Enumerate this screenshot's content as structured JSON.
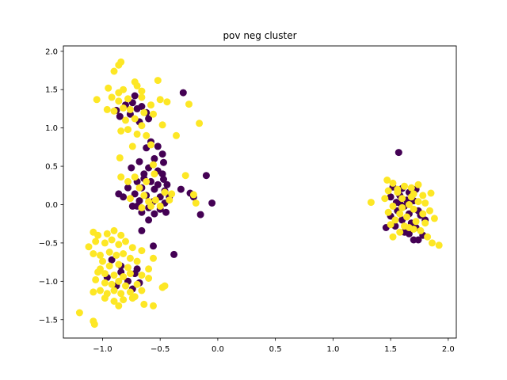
{
  "chart_data": {
    "type": "scatter",
    "title": "pov neg cluster",
    "xlabel": "",
    "ylabel": "",
    "xlim": [
      -1.34,
      2.07
    ],
    "ylim": [
      -1.74,
      2.07
    ],
    "xticks": [
      -1.0,
      -0.5,
      0.0,
      0.5,
      1.0,
      1.5,
      2.0
    ],
    "xtick_labels": [
      "−1.0",
      "−0.5",
      "0.0",
      "0.5",
      "1.0",
      "1.5",
      "2.0"
    ],
    "yticks": [
      -1.5,
      -1.0,
      -0.5,
      0.0,
      0.5,
      1.0,
      1.5,
      2.0
    ],
    "ytick_labels": [
      "−1.5",
      "−1.0",
      "−0.5",
      "0.0",
      "0.5",
      "1.0",
      "1.5",
      "2.0"
    ],
    "grid": false,
    "legend": "none",
    "colors": {
      "class_0": "#440154",
      "class_1": "#fde725",
      "axes": "#000000",
      "background": "#ffffff"
    },
    "series": [
      {
        "color": "#440154",
        "points": [
          [
            -0.3,
            1.46
          ],
          [
            -0.74,
            1.33
          ],
          [
            -0.7,
            1.25
          ],
          [
            -0.8,
            1.3
          ],
          [
            -0.62,
            1.2
          ],
          [
            -0.76,
            1.18
          ],
          [
            -0.85,
            1.15
          ],
          [
            -0.68,
            1.08
          ],
          [
            -0.88,
            1.23
          ],
          [
            -0.66,
            1.28
          ],
          [
            -0.72,
            1.42
          ],
          [
            -0.6,
            1.12
          ],
          [
            -0.58,
            0.82
          ],
          [
            -0.52,
            0.76
          ],
          [
            -0.62,
            0.74
          ],
          [
            -0.48,
            0.66
          ],
          [
            -0.55,
            0.6
          ],
          [
            -0.68,
            0.56
          ],
          [
            -0.47,
            0.55
          ],
          [
            -0.6,
            0.48
          ],
          [
            -0.52,
            0.44
          ],
          [
            -0.64,
            0.4
          ],
          [
            -0.75,
            0.48
          ],
          [
            -0.7,
            0.3
          ],
          [
            -0.58,
            0.3
          ],
          [
            -0.47,
            0.33
          ],
          [
            -0.78,
            0.22
          ],
          [
            -0.66,
            0.22
          ],
          [
            -0.55,
            0.2
          ],
          [
            -0.46,
            0.18
          ],
          [
            -0.72,
            0.14
          ],
          [
            -0.62,
            0.12
          ],
          [
            -0.5,
            0.1
          ],
          [
            -0.42,
            0.1
          ],
          [
            -0.82,
            0.1
          ],
          [
            -0.68,
            0.05
          ],
          [
            -0.56,
            0.04
          ],
          [
            -0.46,
            0.02
          ],
          [
            -0.74,
            -0.02
          ],
          [
            -0.6,
            -0.04
          ],
          [
            -0.5,
            -0.06
          ],
          [
            -0.66,
            -0.1
          ],
          [
            -0.55,
            -0.12
          ],
          [
            -0.45,
            -0.1
          ],
          [
            -0.6,
            -0.2
          ],
          [
            -0.7,
            -0.02
          ],
          [
            -0.52,
            0.26
          ],
          [
            -0.44,
            0.26
          ],
          [
            -0.86,
            0.14
          ],
          [
            -0.64,
            0.34
          ],
          [
            -0.24,
            0.15
          ],
          [
            -0.21,
            0.1
          ],
          [
            -0.1,
            0.38
          ],
          [
            -0.15,
            -0.13
          ],
          [
            -0.05,
            0.02
          ],
          [
            -0.66,
            -0.34
          ],
          [
            -0.56,
            -0.54
          ],
          [
            -0.38,
            -0.65
          ],
          [
            -0.32,
            0.2
          ],
          [
            -0.48,
            0.4
          ],
          [
            -0.92,
            -0.72
          ],
          [
            -0.84,
            -0.88
          ],
          [
            -0.72,
            -0.9
          ],
          [
            -0.78,
            -1.0
          ],
          [
            -0.88,
            -1.06
          ],
          [
            -0.68,
            -1.02
          ],
          [
            -0.84,
            -0.8
          ],
          [
            -0.74,
            -1.1
          ],
          [
            -0.96,
            -0.95
          ],
          [
            -0.7,
            -0.84
          ],
          [
            1.57,
            0.68
          ],
          [
            1.52,
            0.23
          ],
          [
            1.6,
            0.21
          ],
          [
            1.66,
            0.16
          ],
          [
            1.5,
            0.1
          ],
          [
            1.58,
            0.12
          ],
          [
            1.64,
            0.06
          ],
          [
            1.55,
            0.03
          ],
          [
            1.7,
            0.05
          ],
          [
            1.62,
            -0.02
          ],
          [
            1.56,
            -0.08
          ],
          [
            1.66,
            -0.12
          ],
          [
            1.74,
            -0.08
          ],
          [
            1.5,
            -0.15
          ],
          [
            1.6,
            -0.2
          ],
          [
            1.68,
            -0.24
          ],
          [
            1.72,
            -0.3
          ],
          [
            1.54,
            -0.28
          ],
          [
            1.62,
            -0.36
          ],
          [
            1.46,
            -0.3
          ],
          [
            1.7,
            -0.46
          ],
          [
            1.74,
            -0.46
          ],
          [
            1.78,
            -0.4
          ],
          [
            1.76,
            -0.14
          ],
          [
            1.8,
            -0.2
          ],
          [
            1.58,
            0.02
          ],
          [
            1.72,
            0.2
          ],
          [
            1.66,
            -0.38
          ]
        ]
      },
      {
        "color": "#fde725",
        "points": [
          [
            -0.84,
            1.86
          ],
          [
            -0.86,
            1.82
          ],
          [
            -0.9,
            1.74
          ],
          [
            -0.95,
            1.52
          ],
          [
            -0.86,
            1.46
          ],
          [
            -0.82,
            1.5
          ],
          [
            -0.72,
            1.6
          ],
          [
            -0.7,
            1.55
          ],
          [
            -0.66,
            1.48
          ],
          [
            -0.52,
            1.62
          ],
          [
            -1.05,
            1.37
          ],
          [
            -0.92,
            1.4
          ],
          [
            -0.86,
            1.35
          ],
          [
            -0.78,
            1.38
          ],
          [
            -0.66,
            1.4
          ],
          [
            -0.58,
            1.3
          ],
          [
            -0.5,
            1.37
          ],
          [
            -0.44,
            1.34
          ],
          [
            -0.25,
            1.31
          ],
          [
            -0.96,
            1.24
          ],
          [
            -0.9,
            1.22
          ],
          [
            -0.82,
            1.26
          ],
          [
            -0.76,
            1.24
          ],
          [
            -0.64,
            1.2
          ],
          [
            -0.56,
            1.18
          ],
          [
            -0.8,
            1.1
          ],
          [
            -0.72,
            1.12
          ],
          [
            -0.66,
            1.03
          ],
          [
            -0.78,
            0.98
          ],
          [
            -0.84,
            0.96
          ],
          [
            -0.62,
            0.9
          ],
          [
            -0.7,
            0.92
          ],
          [
            -0.16,
            1.06
          ],
          [
            -0.36,
            0.9
          ],
          [
            -0.48,
            1.04
          ],
          [
            -0.74,
            0.76
          ],
          [
            -0.58,
            0.78
          ],
          [
            -0.85,
            0.61
          ],
          [
            -0.56,
            0.52
          ],
          [
            -0.84,
            0.36
          ],
          [
            -0.78,
            0.3
          ],
          [
            -0.72,
            0.36
          ],
          [
            -0.76,
            0.08
          ],
          [
            -0.68,
            0.22
          ],
          [
            -0.64,
            0.12
          ],
          [
            -0.6,
            0.04
          ],
          [
            -0.54,
            0.06
          ],
          [
            -0.46,
            0.16
          ],
          [
            -0.4,
            0.14
          ],
          [
            -0.42,
            0.06
          ],
          [
            -0.66,
            -0.04
          ],
          [
            -0.58,
            -0.02
          ],
          [
            -0.5,
            -0.02
          ],
          [
            -0.62,
            0.3
          ],
          [
            -0.28,
            0.38
          ],
          [
            -0.21,
            0.13
          ],
          [
            -0.19,
            0.02
          ],
          [
            -0.55,
            0.4
          ],
          [
            -1.08,
            -0.36
          ],
          [
            -1.04,
            -0.4
          ],
          [
            -0.96,
            -0.38
          ],
          [
            -0.9,
            -0.34
          ],
          [
            -0.84,
            -0.4
          ],
          [
            -1.12,
            -0.55
          ],
          [
            -1.06,
            -0.48
          ],
          [
            -0.98,
            -0.5
          ],
          [
            -0.92,
            -0.46
          ],
          [
            -0.86,
            -0.52
          ],
          [
            -0.8,
            -0.48
          ],
          [
            -0.74,
            -0.56
          ],
          [
            -0.66,
            -0.6
          ],
          [
            -1.08,
            -0.64
          ],
          [
            -1.02,
            -0.66
          ],
          [
            -0.94,
            -0.62
          ],
          [
            -0.88,
            -0.66
          ],
          [
            -0.82,
            -0.64
          ],
          [
            -0.76,
            -0.7
          ],
          [
            -0.7,
            -0.74
          ],
          [
            -1.0,
            -0.74
          ],
          [
            -0.94,
            -0.8
          ],
          [
            -0.86,
            -0.78
          ],
          [
            -0.78,
            -0.82
          ],
          [
            -1.04,
            -0.88
          ],
          [
            -0.98,
            -0.9
          ],
          [
            -0.9,
            -0.92
          ],
          [
            -0.82,
            -0.94
          ],
          [
            -0.76,
            -0.9
          ],
          [
            -0.66,
            -0.92
          ],
          [
            -0.6,
            -0.96
          ],
          [
            -1.06,
            -0.98
          ],
          [
            -0.98,
            -1.02
          ],
          [
            -0.92,
            -1.04
          ],
          [
            -0.86,
            -1.0
          ],
          [
            -0.8,
            -1.06
          ],
          [
            -0.7,
            -1.04
          ],
          [
            -1.08,
            -1.14
          ],
          [
            -1.02,
            -1.12
          ],
          [
            -0.96,
            -1.16
          ],
          [
            -0.9,
            -1.12
          ],
          [
            -0.84,
            -1.16
          ],
          [
            -0.76,
            -1.14
          ],
          [
            -0.66,
            -1.12
          ],
          [
            -0.98,
            -1.22
          ],
          [
            -0.9,
            -1.26
          ],
          [
            -0.82,
            -1.24
          ],
          [
            -0.74,
            -1.22
          ],
          [
            -0.86,
            -1.32
          ],
          [
            -0.64,
            -1.3
          ],
          [
            -0.56,
            -1.32
          ],
          [
            -0.46,
            -1.06
          ],
          [
            -0.48,
            -1.08
          ],
          [
            -0.56,
            -0.7
          ],
          [
            -0.6,
            -0.84
          ],
          [
            -1.2,
            -1.41
          ],
          [
            -1.08,
            -1.52
          ],
          [
            -1.07,
            -1.56
          ],
          [
            -1.02,
            -0.84
          ],
          [
            -0.72,
            -1.2
          ],
          [
            1.33,
            0.03
          ],
          [
            1.47,
            0.32
          ],
          [
            1.52,
            0.28
          ],
          [
            1.62,
            0.24
          ],
          [
            1.68,
            0.22
          ],
          [
            1.74,
            0.26
          ],
          [
            1.48,
            0.18
          ],
          [
            1.56,
            0.16
          ],
          [
            1.7,
            0.14
          ],
          [
            1.78,
            0.12
          ],
          [
            1.85,
            0.15
          ],
          [
            1.45,
            0.08
          ],
          [
            1.6,
            0.08
          ],
          [
            1.74,
            0.04
          ],
          [
            1.8,
            0.02
          ],
          [
            1.52,
            -0.02
          ],
          [
            1.66,
            0.0
          ],
          [
            1.84,
            -0.08
          ],
          [
            1.48,
            -0.1
          ],
          [
            1.58,
            -0.12
          ],
          [
            1.7,
            -0.06
          ],
          [
            1.78,
            -0.12
          ],
          [
            1.88,
            -0.18
          ],
          [
            1.54,
            -0.2
          ],
          [
            1.64,
            -0.16
          ],
          [
            1.72,
            -0.22
          ],
          [
            1.8,
            -0.24
          ],
          [
            1.5,
            -0.26
          ],
          [
            1.62,
            -0.28
          ],
          [
            1.7,
            -0.32
          ],
          [
            1.58,
            -0.36
          ],
          [
            1.66,
            -0.3
          ],
          [
            1.76,
            -0.34
          ],
          [
            1.82,
            -0.42
          ],
          [
            1.52,
            -0.42
          ],
          [
            1.86,
            -0.5
          ],
          [
            1.92,
            -0.53
          ],
          [
            1.6,
            -0.04
          ],
          [
            1.68,
            0.1
          ],
          [
            1.56,
            0.2
          ]
        ]
      }
    ]
  }
}
